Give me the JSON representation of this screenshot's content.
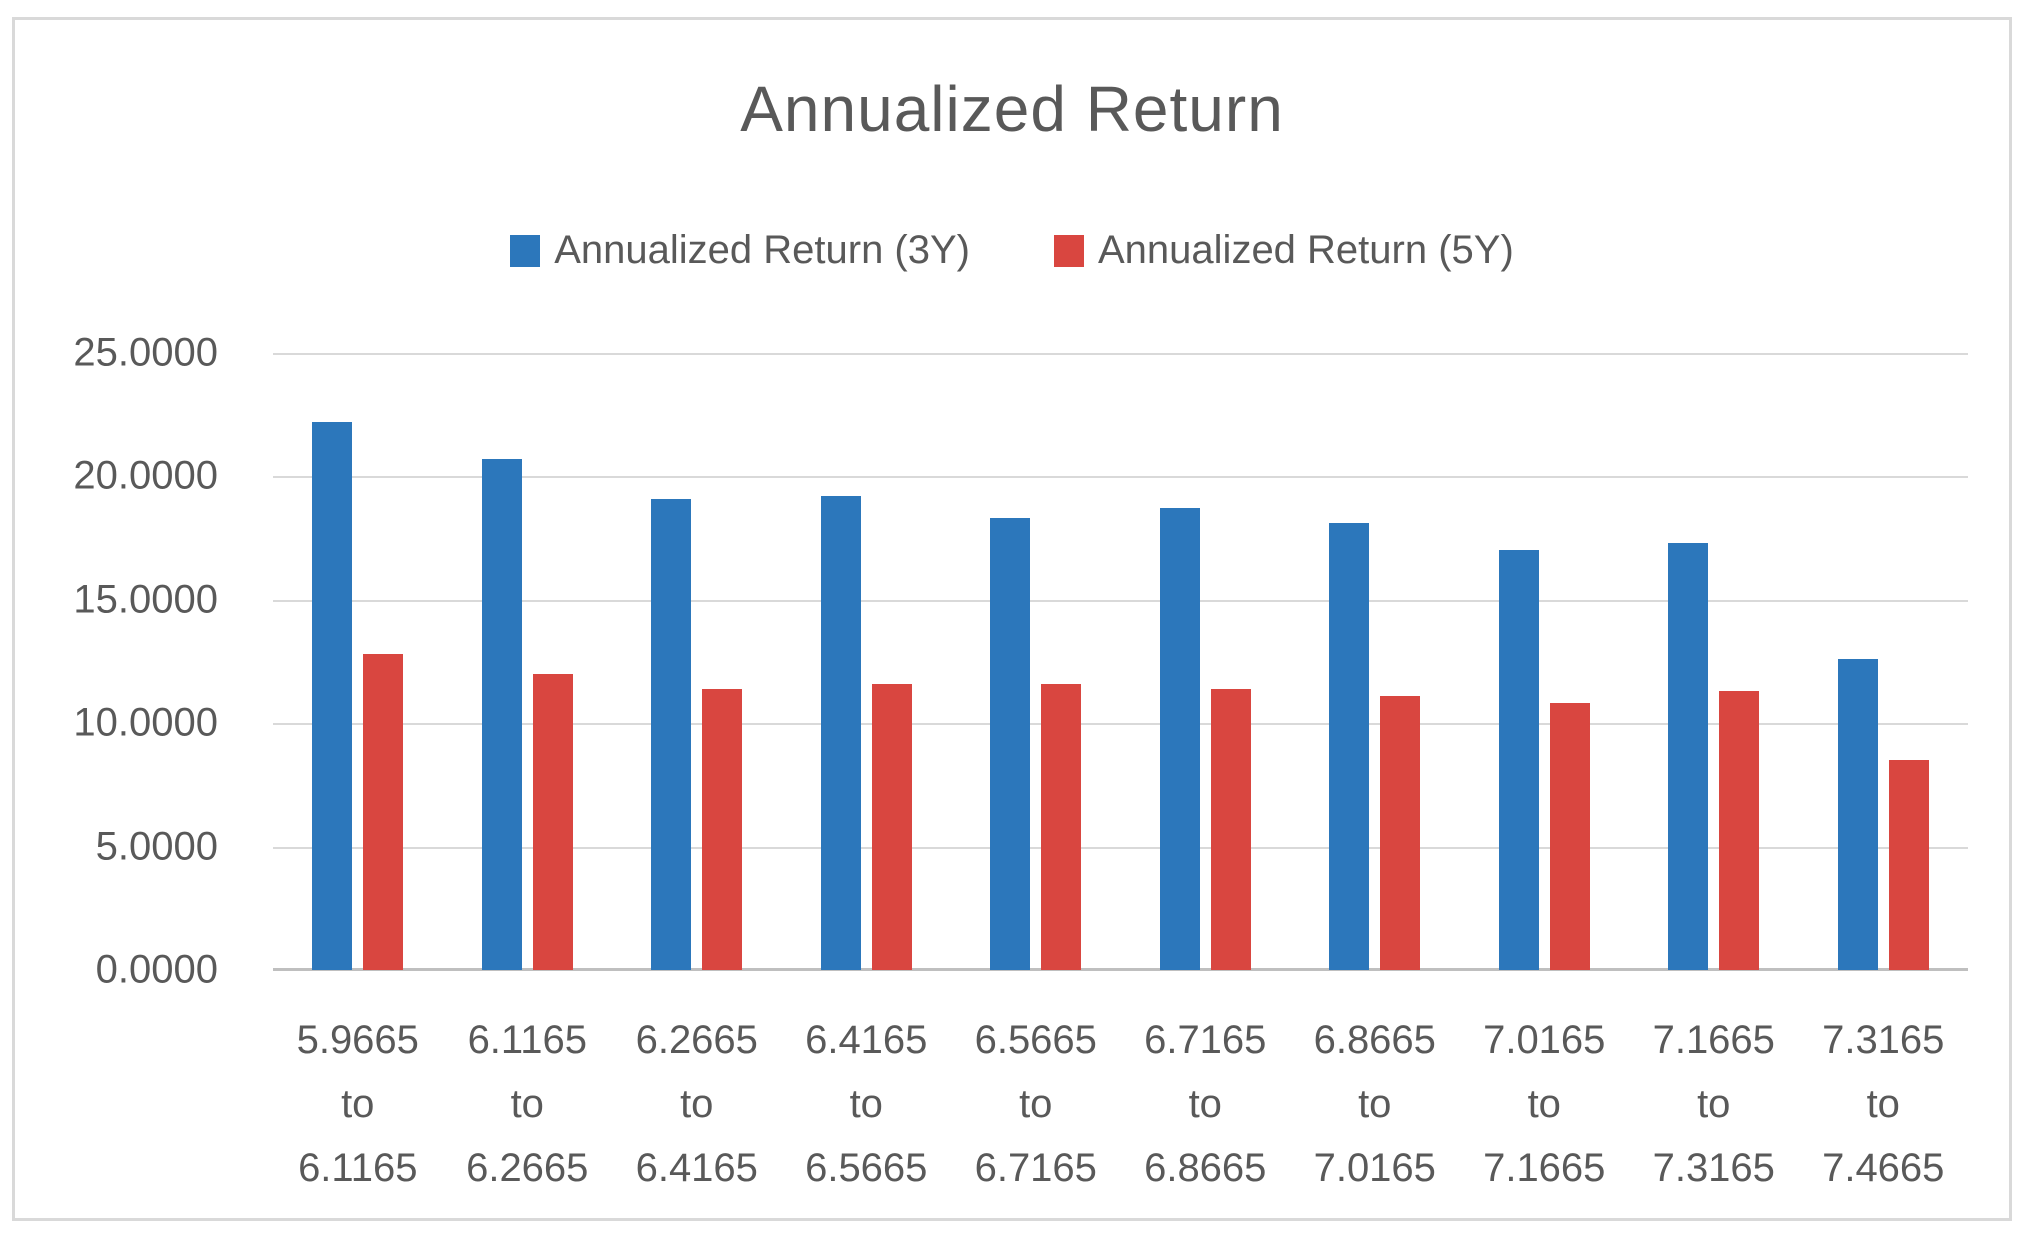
{
  "chart_data": {
    "type": "bar",
    "title": "Annualized Return",
    "legend_position": "top",
    "grid": true,
    "ylim": [
      0,
      25
    ],
    "y_ticks": [
      "25.0000",
      "20.0000",
      "15.0000",
      "10.0000",
      "5.0000",
      "0.0000"
    ],
    "categories": [
      [
        "5.9665",
        "to",
        "6.1165"
      ],
      [
        "6.1165",
        "to",
        "6.2665"
      ],
      [
        "6.2665",
        "to",
        "6.4165"
      ],
      [
        "6.4165",
        "to",
        "6.5665"
      ],
      [
        "6.5665",
        "to",
        "6.7165"
      ],
      [
        "6.7165",
        "to",
        "6.8665"
      ],
      [
        "6.8665",
        "to",
        "7.0165"
      ],
      [
        "7.0165",
        "to",
        "7.1665"
      ],
      [
        "7.1665",
        "to",
        "7.3165"
      ],
      [
        "7.3165",
        "to",
        "7.4665"
      ]
    ],
    "series": [
      {
        "name": "Annualized Return (3Y)",
        "color": "#2C77BB",
        "values": [
          22.2,
          20.7,
          19.1,
          19.2,
          18.3,
          18.7,
          18.1,
          17.0,
          17.3,
          12.6
        ]
      },
      {
        "name": "Annualized Return (5Y)",
        "color": "#D94640",
        "values": [
          12.8,
          12.0,
          11.4,
          11.6,
          11.6,
          11.4,
          11.1,
          10.8,
          11.3,
          8.5
        ]
      }
    ],
    "colors": {
      "text": "#595959",
      "gridline": "#D9D9D9",
      "axis_line": "#BFBFBF",
      "frame_border": "#D9D9D9",
      "background": "#FFFFFF"
    }
  }
}
